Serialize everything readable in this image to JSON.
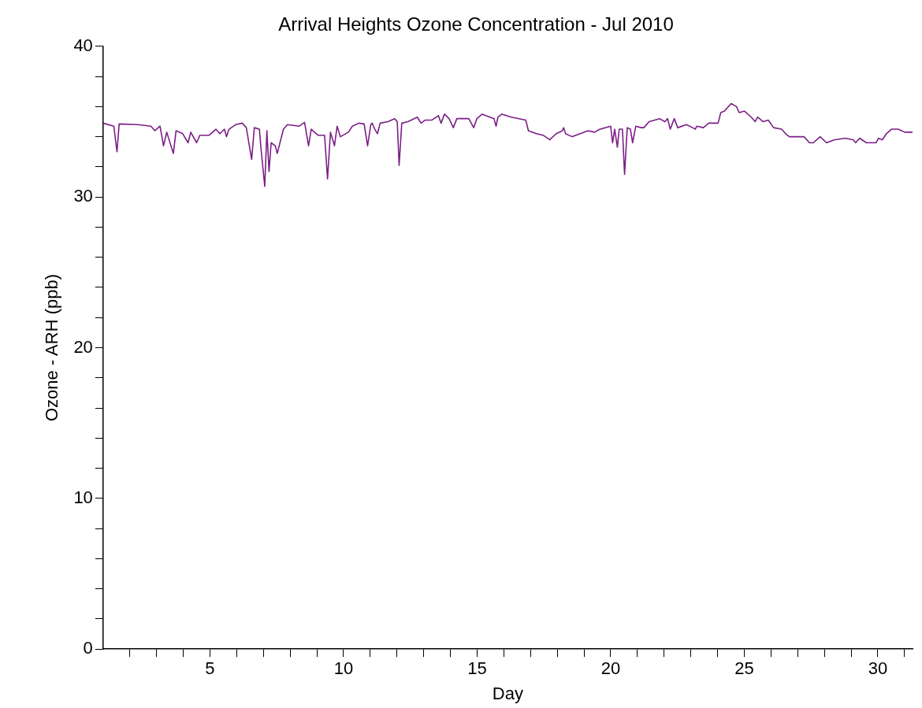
{
  "chart_data": {
    "type": "line",
    "title": "Arrival Heights Ozone Concentration - Jul 2010",
    "xlabel": "Day",
    "ylabel": "Ozone - ARH (ppb)",
    "x": [
      1.0,
      1.4,
      1.52,
      1.6,
      2.29,
      2.79,
      2.94,
      3.13,
      3.26,
      3.38,
      3.63,
      3.73,
      3.98,
      4.18,
      4.28,
      4.5,
      4.62,
      4.97,
      5.22,
      5.37,
      5.54,
      5.62,
      5.71,
      5.96,
      6.21,
      6.36,
      6.56,
      6.66,
      6.85,
      6.9,
      7.05,
      7.13,
      7.21,
      7.29,
      7.44,
      7.52,
      7.62,
      7.75,
      7.9,
      8.34,
      8.54,
      8.69,
      8.79,
      9.04,
      9.29,
      9.4,
      9.51,
      9.66,
      9.76,
      9.88,
      10.18,
      10.33,
      10.57,
      10.77,
      10.9,
      11.02,
      11.07,
      11.17,
      11.27,
      11.37,
      11.66,
      11.91,
      12.01,
      12.08,
      12.18,
      12.41,
      12.76,
      12.9,
      13.05,
      13.3,
      13.55,
      13.65,
      13.78,
      13.95,
      14.11,
      14.24,
      14.69,
      14.87,
      14.99,
      15.19,
      15.48,
      15.63,
      15.71,
      15.78,
      15.93,
      16.28,
      16.82,
      16.92,
      17.22,
      17.47,
      17.72,
      17.96,
      18.19,
      18.24,
      18.31,
      18.56,
      18.86,
      19.15,
      19.4,
      19.6,
      20.0,
      20.07,
      20.15,
      20.25,
      20.32,
      20.44,
      20.52,
      20.62,
      20.74,
      20.82,
      20.94,
      21.14,
      21.24,
      21.44,
      21.83,
      22.03,
      22.13,
      22.23,
      22.38,
      22.51,
      22.83,
      23.07,
      23.17,
      23.22,
      23.47,
      23.67,
      23.97,
      24.02,
      24.12,
      24.26,
      24.51,
      24.71,
      24.81,
      25.01,
      25.26,
      25.41,
      25.5,
      25.7,
      25.9,
      26.1,
      26.4,
      26.55,
      26.69,
      26.99,
      27.24,
      27.44,
      27.59,
      27.84,
      28.08,
      28.38,
      28.78,
      29.08,
      29.17,
      29.32,
      29.57,
      29.87,
      29.94,
      30.02,
      30.17,
      30.32,
      30.51,
      30.76,
      31.01,
      31.3
    ],
    "series": [
      {
        "color": "#7b1f86",
        "values": [
          34.9,
          34.7,
          33.0,
          34.85,
          34.8,
          34.7,
          34.4,
          34.7,
          33.4,
          34.3,
          32.9,
          34.4,
          34.2,
          33.6,
          34.3,
          33.6,
          34.1,
          34.1,
          34.5,
          34.2,
          34.5,
          34.0,
          34.5,
          34.8,
          34.9,
          34.6,
          32.5,
          34.6,
          34.5,
          33.4,
          30.7,
          34.4,
          31.7,
          33.6,
          33.4,
          32.9,
          33.6,
          34.5,
          34.8,
          34.7,
          34.95,
          33.4,
          34.5,
          34.1,
          34.1,
          31.2,
          34.3,
          33.4,
          34.7,
          34.0,
          34.3,
          34.7,
          34.9,
          34.85,
          33.4,
          34.8,
          34.9,
          34.5,
          34.2,
          34.9,
          35.0,
          35.2,
          35.0,
          32.1,
          34.9,
          35.0,
          35.3,
          34.9,
          35.1,
          35.1,
          35.4,
          34.9,
          35.5,
          35.2,
          34.6,
          35.2,
          35.2,
          34.6,
          35.2,
          35.5,
          35.3,
          35.2,
          34.7,
          35.3,
          35.5,
          35.3,
          35.1,
          34.4,
          34.2,
          34.1,
          33.8,
          34.2,
          34.4,
          34.6,
          34.2,
          34.0,
          34.2,
          34.4,
          34.3,
          34.5,
          34.7,
          33.6,
          34.5,
          33.3,
          34.5,
          34.5,
          31.5,
          34.6,
          34.5,
          33.6,
          34.7,
          34.6,
          34.6,
          35.0,
          35.2,
          35.0,
          35.2,
          34.5,
          35.2,
          34.6,
          34.8,
          34.6,
          34.5,
          34.7,
          34.6,
          34.9,
          34.9,
          34.9,
          35.6,
          35.7,
          36.2,
          36.0,
          35.6,
          35.7,
          35.3,
          35.0,
          35.3,
          35.0,
          35.1,
          34.6,
          34.5,
          34.2,
          34.0,
          34.0,
          34.0,
          33.6,
          33.6,
          34.0,
          33.6,
          33.8,
          33.9,
          33.8,
          33.6,
          33.9,
          33.6,
          33.6,
          33.6,
          33.9,
          33.8,
          34.2,
          34.5,
          34.5,
          34.3,
          34.3
        ]
      }
    ],
    "xlim": [
      1,
      31.3
    ],
    "xticks": [
      {
        "value": 2,
        "label": null
      },
      {
        "value": 3,
        "label": null
      },
      {
        "value": 4,
        "label": null
      },
      5,
      {
        "value": 6,
        "label": null
      },
      {
        "value": 7,
        "label": null
      },
      {
        "value": 8,
        "label": null
      },
      {
        "value": 9,
        "label": null
      },
      10,
      {
        "value": 11,
        "label": null
      },
      {
        "value": 12,
        "label": null
      },
      {
        "value": 13,
        "label": null
      },
      {
        "value": 14,
        "label": null
      },
      15,
      {
        "value": 16,
        "label": null
      },
      {
        "value": 17,
        "label": null
      },
      {
        "value": 18,
        "label": null
      },
      {
        "value": 19,
        "label": null
      },
      20,
      {
        "value": 21,
        "label": null
      },
      {
        "value": 22,
        "label": null
      },
      {
        "value": 23,
        "label": null
      },
      {
        "value": 24,
        "label": null
      },
      25,
      {
        "value": 26,
        "label": null
      },
      {
        "value": 27,
        "label": null
      },
      {
        "value": 28,
        "label": null
      },
      {
        "value": 29,
        "label": null
      },
      30,
      {
        "value": 31,
        "label": null
      }
    ],
    "ylim": [
      0,
      40
    ],
    "yticks": [
      0,
      {
        "value": 2,
        "label": null
      },
      {
        "value": 4,
        "label": null
      },
      {
        "value": 6,
        "label": null
      },
      {
        "value": 8,
        "label": null
      },
      10,
      {
        "value": 12,
        "label": null
      },
      {
        "value": 14,
        "label": null
      },
      {
        "value": 16,
        "label": null
      },
      {
        "value": 18,
        "label": null
      },
      20,
      {
        "value": 22,
        "label": null
      },
      {
        "value": 24,
        "label": null
      },
      {
        "value": 26,
        "label": null
      },
      {
        "value": 28,
        "label": null
      },
      30,
      {
        "value": 32,
        "label": null
      },
      {
        "value": 34,
        "label": null
      },
      {
        "value": 36,
        "label": null
      },
      {
        "value": 38,
        "label": null
      },
      40
    ],
    "grid": false,
    "legend": false,
    "marker": "none",
    "line_style": "solid"
  }
}
